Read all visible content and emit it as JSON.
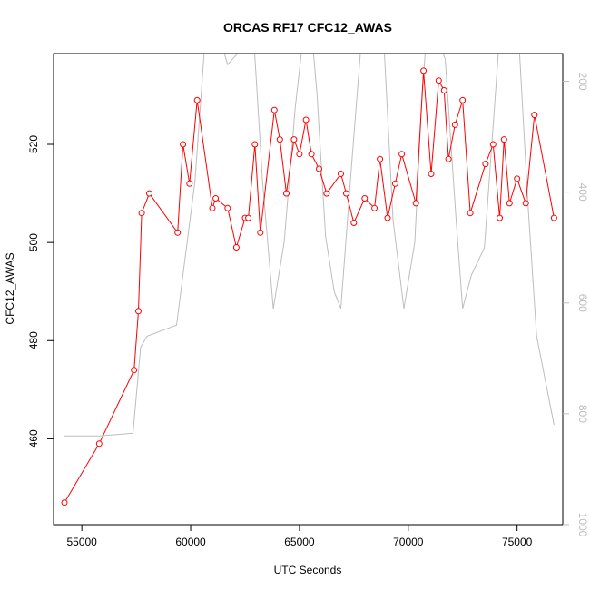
{
  "chart_data": {
    "type": "line",
    "title": "ORCAS RF17 CFC12_AWAS",
    "xlabel": "UTC Seconds",
    "ylabel": "CFC12_AWAS",
    "xlim": [
      53700,
      77100
    ],
    "ylim": [
      442.5,
      538.5
    ],
    "x_ticks": [
      55000,
      60000,
      65000,
      70000,
      75000
    ],
    "y_ticks": [
      460,
      480,
      500,
      520
    ],
    "right_axis": {
      "ylim": [
        1000,
        150
      ],
      "ticks": [
        200,
        400,
        600,
        800,
        1000
      ],
      "color": "#bdbdbd"
    },
    "grid": false,
    "series": [
      {
        "color": "#ff0000",
        "style": "line+circles",
        "x": [
          54200,
          55800,
          57400,
          57600,
          57750,
          58100,
          59400,
          59650,
          59950,
          60300,
          61000,
          61150,
          61700,
          62100,
          62500,
          62650,
          62950,
          63200,
          63850,
          64100,
          64400,
          64750,
          65000,
          65300,
          65550,
          65900,
          66250,
          66900,
          67150,
          67500,
          68000,
          68450,
          68700,
          69050,
          69400,
          69700,
          70350,
          70700,
          71050,
          71400,
          71650,
          71850,
          72150,
          72500,
          72850,
          73550,
          73900,
          74200,
          74400,
          74650,
          75000,
          75400,
          75800,
          76700
        ],
        "y": [
          447,
          459,
          474,
          486,
          506,
          510,
          502,
          520,
          512,
          529,
          507,
          509,
          507,
          499,
          505,
          505,
          520,
          502,
          527,
          521,
          510,
          521,
          518,
          525,
          518,
          515,
          510,
          514,
          510,
          504,
          509,
          507,
          517,
          505,
          512,
          518,
          508,
          535,
          514,
          533,
          531,
          517,
          524,
          529,
          506,
          516,
          520,
          505,
          521,
          508,
          513,
          508,
          526,
          505
        ]
      },
      {
        "color": "#bdbdbd",
        "style": "line",
        "axis": "right",
        "x": [
          54200,
          55800,
          57350,
          57700,
          58000,
          59350,
          60200,
          60800,
          61700,
          62150,
          62800,
          63300,
          63800,
          64300,
          64800,
          65400,
          65800,
          66200,
          66600,
          66900,
          67400,
          67900,
          68300,
          68800,
          69300,
          69800,
          70300,
          70600,
          71000,
          71300,
          71700,
          72200,
          72500,
          72900,
          73500,
          73900,
          74300,
          74700,
          75100,
          75500,
          75900,
          76700
        ],
        "y": [
          840,
          840,
          835,
          680,
          660,
          640,
          380,
          50,
          170,
          150,
          60,
          380,
          610,
          490,
          250,
          40,
          220,
          480,
          580,
          610,
          350,
          100,
          -20,
          70,
          450,
          610,
          490,
          250,
          20,
          120,
          160,
          450,
          610,
          550,
          500,
          280,
          60,
          80,
          140,
          420,
          660,
          820
        ]
      }
    ]
  }
}
